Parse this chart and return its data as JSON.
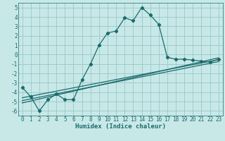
{
  "xlabel": "Humidex (Indice chaleur)",
  "ylabel": "",
  "bg_color": "#c8e8e8",
  "grid_color": "#98c8c8",
  "line_color": "#1a6b6b",
  "spine_color": "#1a6b6b",
  "xlim": [
    -0.5,
    23.5
  ],
  "ylim": [
    -6.5,
    5.5
  ],
  "xticks": [
    0,
    1,
    2,
    3,
    4,
    5,
    6,
    7,
    8,
    9,
    10,
    11,
    12,
    13,
    14,
    15,
    16,
    17,
    18,
    19,
    20,
    21,
    22,
    23
  ],
  "yticks": [
    -6,
    -5,
    -4,
    -3,
    -2,
    -1,
    0,
    1,
    2,
    3,
    4,
    5
  ],
  "main_x": [
    0,
    1,
    2,
    3,
    4,
    5,
    6,
    7,
    8,
    9,
    10,
    11,
    12,
    13,
    14,
    15,
    16,
    17,
    18,
    19,
    20,
    21,
    22,
    23
  ],
  "main_y": [
    -3.5,
    -4.5,
    -6.0,
    -4.8,
    -4.2,
    -4.8,
    -4.8,
    -2.7,
    -1.0,
    1.0,
    2.3,
    2.5,
    3.9,
    3.6,
    5.0,
    4.2,
    3.2,
    -0.3,
    -0.5,
    -0.5,
    -0.6,
    -0.7,
    -0.8,
    -0.5
  ],
  "line1_x": [
    0,
    23
  ],
  "line1_y": [
    -4.6,
    -0.55
  ],
  "line2_x": [
    0,
    23
  ],
  "line2_y": [
    -4.9,
    -0.75
  ],
  "line3_x": [
    0,
    23
  ],
  "line3_y": [
    -5.15,
    -0.35
  ],
  "tick_fontsize": 5.5,
  "xlabel_fontsize": 6.5
}
